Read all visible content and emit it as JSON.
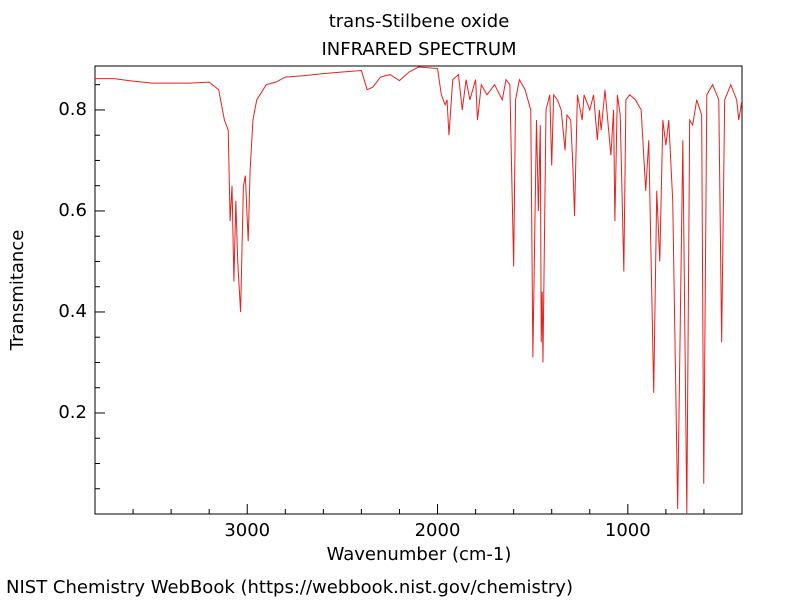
{
  "chart_data": {
    "type": "line",
    "title": "trans-Stilbene oxide",
    "subtitle": "INFRARED SPECTRUM",
    "x_label": "Wavenumber (cm-1)",
    "y_label": "Transmitance",
    "footer": "NIST Chemistry WebBook (https://webbook.nist.gov/chemistry)",
    "color": "#e8211d",
    "xlim": [
      3800,
      400
    ],
    "ylim": [
      0,
      0.887
    ],
    "xticks": [
      3000,
      2000,
      1000
    ],
    "yticks": [
      0.2,
      0.4,
      0.6,
      0.8
    ],
    "xminorticks": [
      3800,
      3600,
      3400,
      3200,
      2800,
      2600,
      2400,
      2200,
      1800,
      1600,
      1400,
      1200,
      800,
      600
    ],
    "yminorticks": [
      0.05,
      0.1,
      0.15,
      0.25,
      0.3,
      0.35,
      0.45,
      0.5,
      0.55,
      0.65,
      0.7,
      0.75,
      0.85
    ],
    "grid": false,
    "x": [
      3800,
      3700,
      3600,
      3500,
      3300,
      3200,
      3150,
      3120,
      3100,
      3090,
      3080,
      3070,
      3060,
      3050,
      3035,
      3020,
      3010,
      2995,
      2985,
      2970,
      2950,
      2900,
      2850,
      2800,
      2700,
      2600,
      2500,
      2400,
      2370,
      2340,
      2300,
      2250,
      2200,
      2150,
      2100,
      2000,
      1980,
      1960,
      1950,
      1940,
      1920,
      1890,
      1870,
      1850,
      1830,
      1800,
      1790,
      1770,
      1740,
      1700,
      1660,
      1640,
      1620,
      1600,
      1590,
      1570,
      1540,
      1510,
      1499,
      1480,
      1470,
      1460,
      1455,
      1450,
      1446,
      1430,
      1410,
      1400,
      1390,
      1370,
      1350,
      1330,
      1320,
      1300,
      1289,
      1280,
      1265,
      1240,
      1230,
      1200,
      1180,
      1160,
      1150,
      1140,
      1120,
      1089,
      1075,
      1068,
      1055,
      1040,
      1021,
      1010,
      990,
      960,
      930,
      906,
      890,
      864,
      848,
      832,
      816,
      800,
      785,
      764,
      738,
      711,
      690,
      675,
      659,
      638,
      612,
      601,
      585,
      554,
      522,
      507,
      491,
      459,
      428,
      417,
      400
    ],
    "values": [
      0.862,
      0.862,
      0.857,
      0.853,
      0.853,
      0.855,
      0.84,
      0.78,
      0.76,
      0.58,
      0.65,
      0.46,
      0.62,
      0.5,
      0.4,
      0.65,
      0.67,
      0.54,
      0.68,
      0.78,
      0.82,
      0.85,
      0.855,
      0.865,
      0.868,
      0.872,
      0.875,
      0.878,
      0.84,
      0.845,
      0.865,
      0.87,
      0.858,
      0.875,
      0.885,
      0.882,
      0.83,
      0.81,
      0.82,
      0.75,
      0.86,
      0.87,
      0.8,
      0.86,
      0.82,
      0.86,
      0.78,
      0.85,
      0.83,
      0.85,
      0.82,
      0.86,
      0.85,
      0.49,
      0.82,
      0.86,
      0.84,
      0.8,
      0.31,
      0.78,
      0.6,
      0.77,
      0.34,
      0.44,
      0.3,
      0.8,
      0.83,
      0.69,
      0.83,
      0.82,
      0.8,
      0.72,
      0.79,
      0.78,
      0.69,
      0.59,
      0.83,
      0.78,
      0.83,
      0.8,
      0.83,
      0.74,
      0.8,
      0.76,
      0.84,
      0.71,
      0.8,
      0.58,
      0.83,
      0.79,
      0.48,
      0.82,
      0.83,
      0.82,
      0.8,
      0.64,
      0.74,
      0.24,
      0.64,
      0.5,
      0.78,
      0.73,
      0.78,
      0.62,
      0.01,
      0.74,
      0,
      0.78,
      0.77,
      0.82,
      0.79,
      0.06,
      0.83,
      0.85,
      0.82,
      0.34,
      0.82,
      0.85,
      0.82,
      0.78,
      0.82
    ]
  }
}
